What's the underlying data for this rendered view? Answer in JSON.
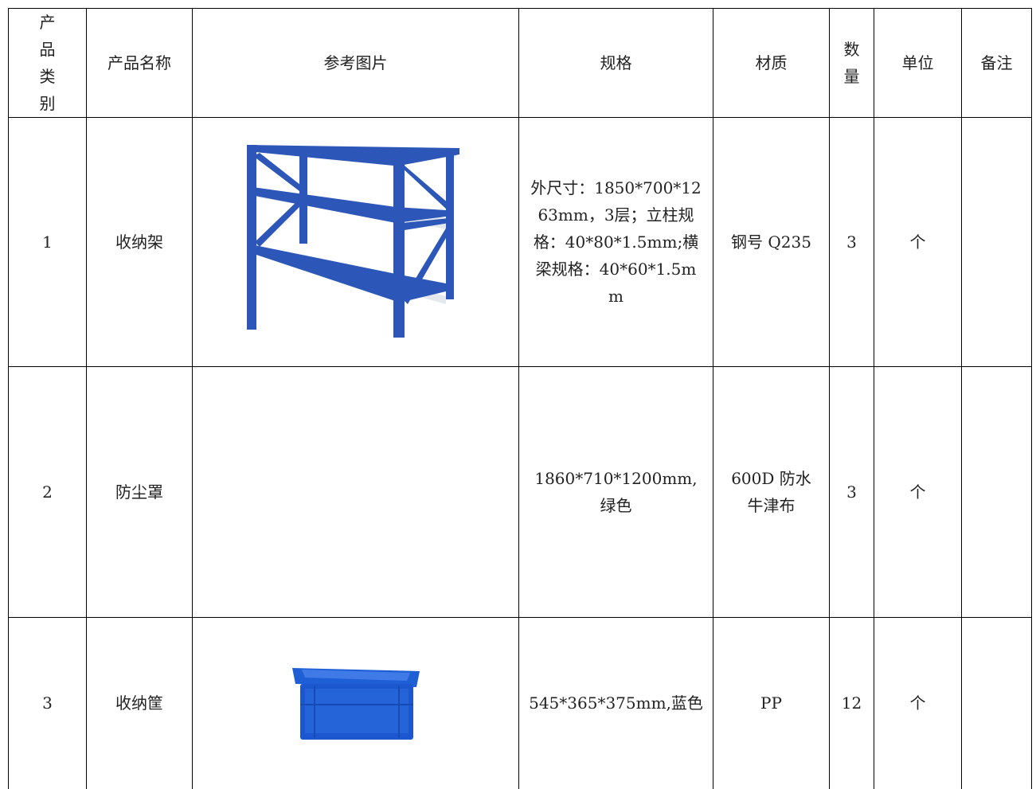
{
  "table": {
    "header": [
      "产品类别",
      "产品名称",
      "参考图片",
      "规格",
      "材质",
      "数量",
      "单位",
      "备注"
    ],
    "rows": [
      {
        "category": 1,
        "name": "收纳架",
        "spec": "外尺寸：1850*700*1263mm，3层；立柱规格：40*80*1.5mm;横梁规格：40*60*1.5mm",
        "material": "钢号 Q235",
        "quantity": 3,
        "unit": "个"
      },
      {
        "category": 2,
        "name": "防尘罩",
        "spec": "1860*710*1200mm,绿色",
        "material": "600D 防水牛津布",
        "quantity": 3,
        "unit": "个"
      },
      {
        "category": 3,
        "name": "收纳筐",
        "spec": "545*365*375mm,蓝色",
        "material": "PP",
        "quantity": 12,
        "unit": "个"
      }
    ]
  }
}
